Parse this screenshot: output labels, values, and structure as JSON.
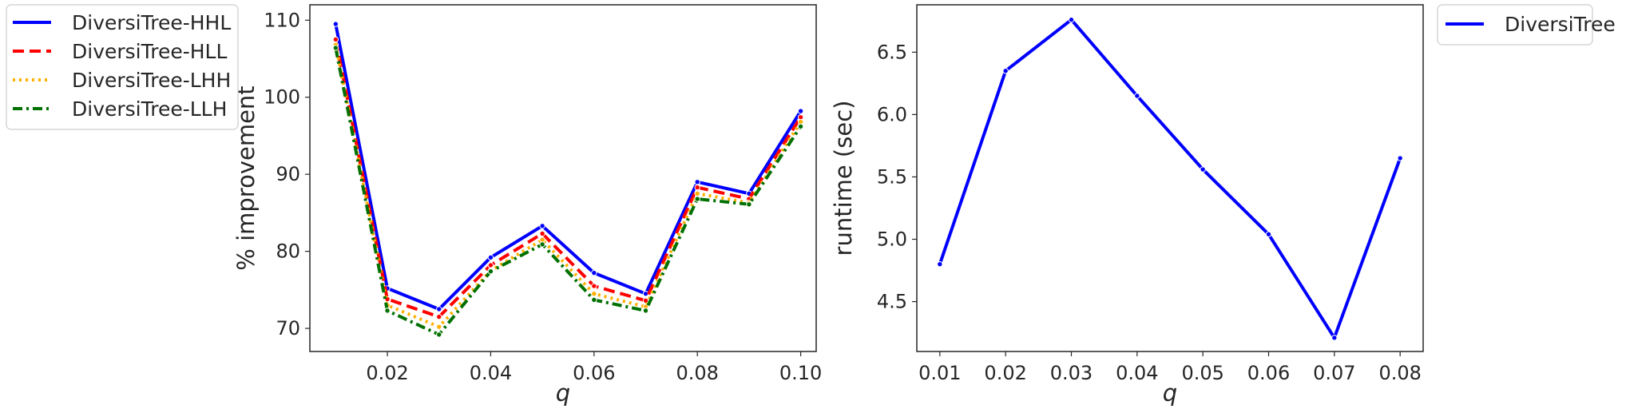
{
  "chart_data": [
    {
      "type": "line",
      "title": "",
      "xlabel": "q",
      "ylabel": "% improvement",
      "xlim": [
        0.005,
        0.103
      ],
      "ylim": [
        67,
        112
      ],
      "xticks": [
        0.02,
        0.04,
        0.06,
        0.08,
        0.1
      ],
      "xtick_labels": [
        "0.02",
        "0.04",
        "0.06",
        "0.08",
        "0.10"
      ],
      "yticks": [
        70,
        80,
        90,
        100,
        110
      ],
      "ytick_labels": [
        "70",
        "80",
        "90",
        "100",
        "110"
      ],
      "grid": false,
      "legend_position": "outside-left-top",
      "x": [
        0.01,
        0.02,
        0.03,
        0.04,
        0.05,
        0.06,
        0.07,
        0.08,
        0.09,
        0.1
      ],
      "series": [
        {
          "name": "DiversiTree-HHL",
          "color": "#0000ff",
          "style": "solid",
          "values": [
            109.5,
            75.2,
            72.5,
            79.2,
            83.3,
            77.2,
            74.5,
            89.0,
            87.5,
            98.2
          ]
        },
        {
          "name": "DiversiTree-HLL",
          "color": "#ff0000",
          "style": "dashed",
          "values": [
            107.5,
            73.8,
            71.5,
            78.2,
            82.3,
            75.5,
            73.6,
            88.3,
            86.8,
            97.4
          ]
        },
        {
          "name": "DiversiTree-LHH",
          "color": "#ffb000",
          "style": "dotted",
          "values": [
            106.8,
            73.0,
            70.2,
            77.5,
            81.5,
            74.5,
            72.8,
            87.5,
            86.3,
            96.8
          ]
        },
        {
          "name": "DiversiTree-LLH",
          "color": "#007000",
          "style": "dashdot",
          "values": [
            106.4,
            72.3,
            69.2,
            77.4,
            80.9,
            73.7,
            72.3,
            86.8,
            86.1,
            96.2
          ]
        }
      ]
    },
    {
      "type": "line",
      "title": "",
      "xlabel": "q",
      "ylabel": "runtime (sec)",
      "xlim": [
        0.0065,
        0.0835
      ],
      "ylim": [
        4.1,
        6.88
      ],
      "xticks": [
        0.01,
        0.02,
        0.03,
        0.04,
        0.05,
        0.06,
        0.07,
        0.08
      ],
      "xtick_labels": [
        "0.01",
        "0.02",
        "0.03",
        "0.04",
        "0.05",
        "0.06",
        "0.07",
        "0.08"
      ],
      "yticks": [
        4.5,
        5.0,
        5.5,
        6.0,
        6.5
      ],
      "ytick_labels": [
        "4.5",
        "5.0",
        "5.5",
        "6.0",
        "6.5"
      ],
      "grid": false,
      "legend_position": "outside-right-top",
      "x": [
        0.01,
        0.02,
        0.03,
        0.04,
        0.05,
        0.06,
        0.07,
        0.08
      ],
      "series": [
        {
          "name": "DiversiTree",
          "color": "#0000ff",
          "style": "solid",
          "values": [
            4.8,
            6.35,
            6.76,
            6.15,
            5.56,
            5.04,
            4.21,
            5.65
          ]
        }
      ]
    }
  ]
}
